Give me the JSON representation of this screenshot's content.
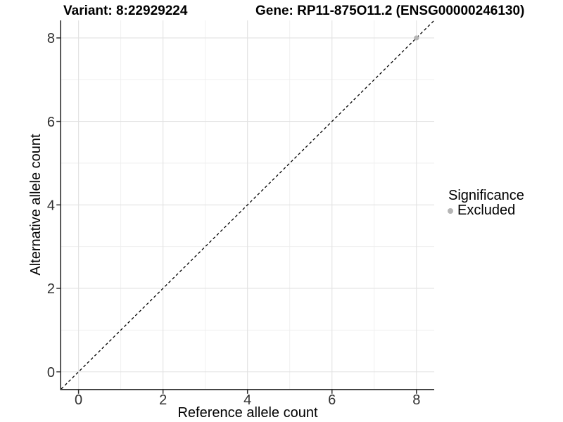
{
  "chart_data": {
    "type": "scatter",
    "title_left": "Variant: 8:22929224",
    "title_right": "Gene: RP11-875O11.2 (ENSG00000246130)",
    "xlabel": "Reference allele count",
    "ylabel": "Alternative allele count",
    "xlim": [
      -0.41,
      8.42
    ],
    "ylim": [
      -0.41,
      8.42
    ],
    "x_ticks": [
      0,
      2,
      4,
      6,
      8
    ],
    "y_ticks": [
      0,
      2,
      4,
      6,
      8
    ],
    "x_minor": [
      1,
      3,
      5,
      7
    ],
    "y_minor": [
      1,
      3,
      5,
      7
    ],
    "grid": "on",
    "reference_line": {
      "kind": "identity y = x",
      "style": "dashed",
      "color": "#000000"
    },
    "series": [
      {
        "name": "Excluded",
        "color": "#b5b5b5",
        "points": [
          {
            "x": 8,
            "y": 8
          }
        ]
      }
    ],
    "legend": {
      "title": "Significance",
      "position": "right",
      "entries": [
        {
          "label": "Excluded",
          "color": "#b5b5b5"
        }
      ]
    },
    "colors": {
      "major_grid": "#e2e2e2",
      "minor_grid": "#eeeeee",
      "axis_line": "#2e2e2e",
      "tick_text": "#303030",
      "title_text": "#000000"
    }
  }
}
